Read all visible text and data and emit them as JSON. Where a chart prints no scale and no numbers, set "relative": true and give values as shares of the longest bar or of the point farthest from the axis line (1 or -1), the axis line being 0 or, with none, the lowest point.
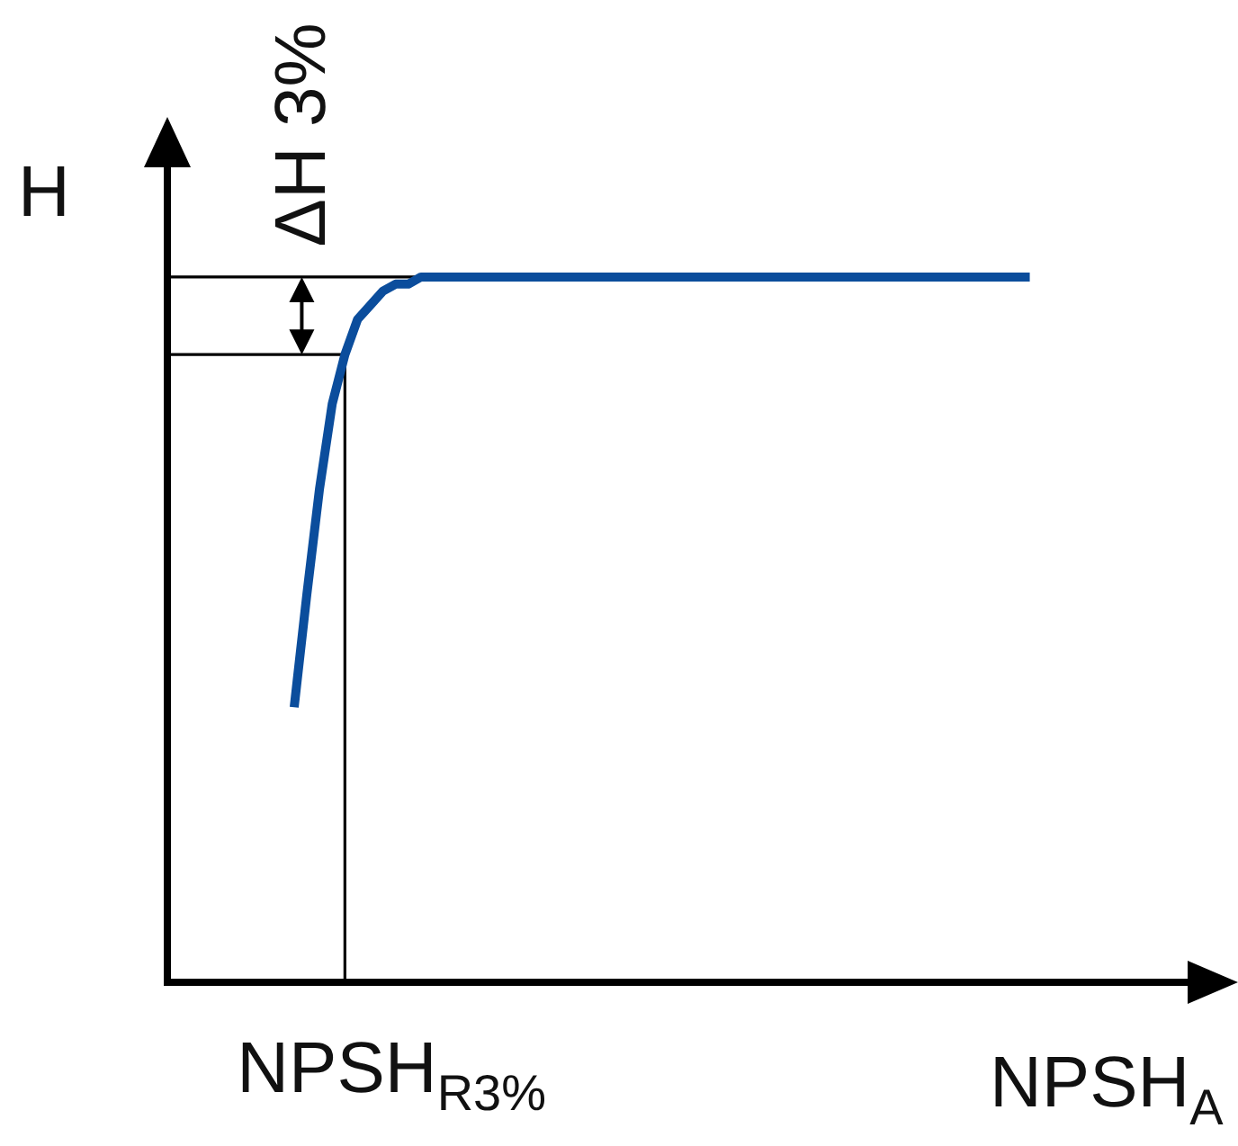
{
  "chart_data": {
    "type": "line",
    "relative": true,
    "xlabel": "NPSH$_{A}$",
    "ylabel": "H",
    "legend": false,
    "marker": "none",
    "line_style": "solid",
    "categories": [
      null,
      null,
      null,
      null,
      null,
      null,
      null,
      null,
      null,
      null,
      null,
      null,
      null,
      null,
      null,
      null,
      null,
      null,
      null,
      null,
      null,
      null,
      null,
      null,
      null,
      null,
      null,
      null,
      null,
      null,
      null,
      null,
      null,
      null,
      null,
      null,
      null,
      null,
      null,
      null,
      null,
      null,
      null,
      null,
      null,
      null,
      null,
      null,
      null,
      null,
      null,
      null,
      null,
      null,
      null,
      null,
      null,
      null,
      null,
      null,
      null,
      null,
      null,
      null,
      null,
      null,
      null,
      null,
      null,
      null,
      null,
      null,
      null,
      null,
      null,
      null,
      null,
      null,
      null,
      null,
      null,
      null,
      null,
      null
    ],
    "series": [
      {
        "color": "#0b4d9c",
        "values": [
          null,
          null,
          null,
          null,
          null,
          null,
          null,
          null,
          null,
          null,
          0.39,
          0.55,
          0.7,
          0.82,
          0.89,
          0.94,
          0.96,
          0.98,
          0.99,
          0.99,
          1,
          1,
          1,
          1,
          1,
          1,
          1,
          1,
          1,
          1,
          1,
          1,
          1,
          1,
          1,
          1,
          1,
          1,
          1,
          1,
          1,
          1,
          1,
          1,
          1,
          1,
          1,
          1,
          1,
          1,
          1,
          1,
          1,
          1,
          1,
          1,
          1,
          1,
          1,
          1,
          1,
          1,
          1,
          1,
          1,
          1,
          1,
          1,
          1,
          null,
          null,
          null,
          null,
          null,
          null,
          null,
          null,
          null,
          null,
          null,
          null,
          null,
          null,
          null
        ]
      }
    ],
    "ref_lines": [
      {
        "axis": "y",
        "value": 1,
        "color": "#000000"
      },
      {
        "axis": "y",
        "value": 0.89,
        "color": "#000000"
      }
    ],
    "annotations": [
      "ΔH 3%",
      "NPSH$_{R3%}$"
    ]
  }
}
